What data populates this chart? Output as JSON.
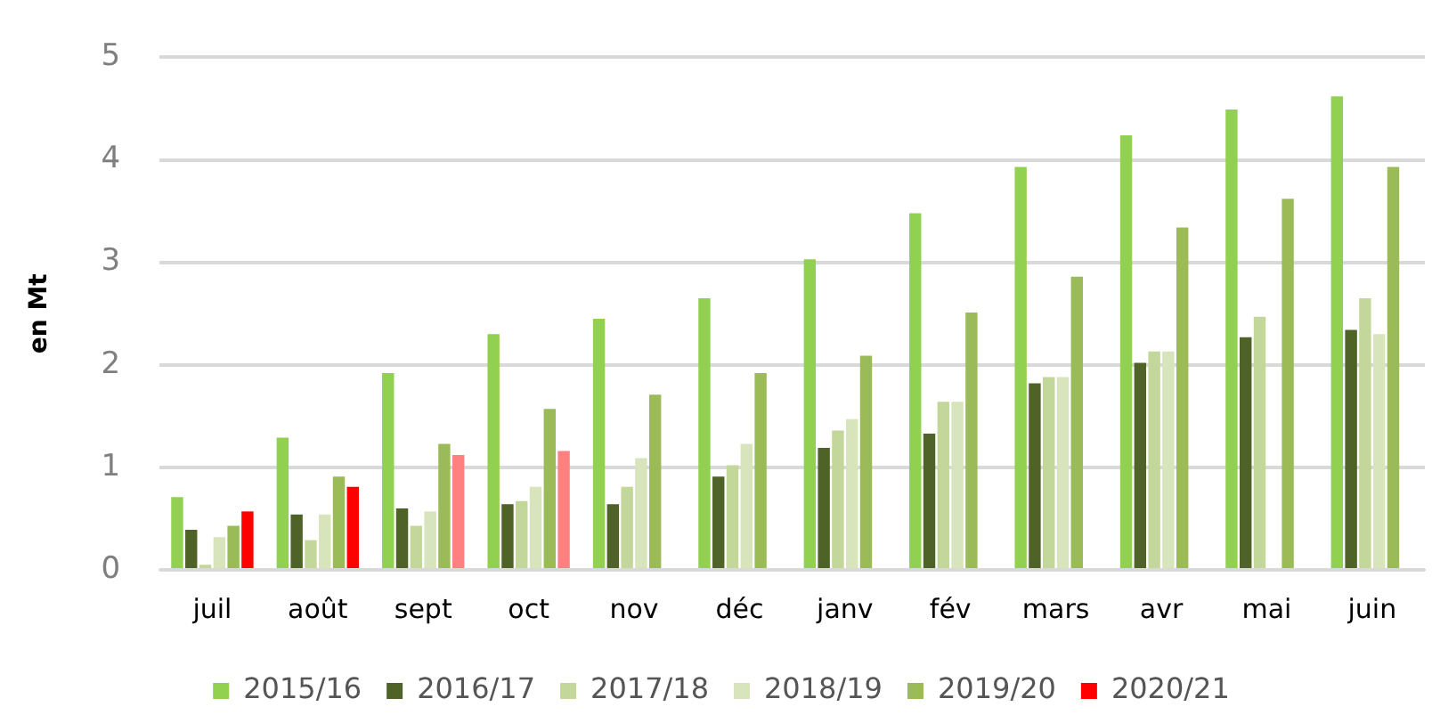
{
  "chart_data": {
    "type": "bar",
    "ylabel": "en Mt",
    "categories": [
      "juil",
      "août",
      "sept",
      "oct",
      "nov",
      "déc",
      "janv",
      "fév",
      "mars",
      "avr",
      "mai",
      "juin"
    ],
    "series": [
      {
        "name": "2015/16",
        "color": "#92d050",
        "values": [
          0.71,
          1.29,
          1.92,
          2.3,
          2.45,
          2.65,
          3.03,
          3.48,
          3.93,
          4.24,
          4.49,
          4.62
        ]
      },
      {
        "name": "2016/17",
        "color": "#4f6228",
        "values": [
          0.39,
          0.54,
          0.6,
          0.64,
          0.64,
          0.91,
          1.19,
          1.33,
          1.82,
          2.02,
          2.27,
          2.34
        ]
      },
      {
        "name": "2017/18",
        "color": "#c4d79b",
        "values": [
          0.05,
          0.29,
          0.43,
          0.67,
          0.81,
          1.02,
          1.36,
          1.64,
          1.88,
          2.13,
          2.47,
          2.65
        ]
      },
      {
        "name": "2018/19",
        "color": "#d8e4bc",
        "values": [
          0.32,
          0.54,
          0.57,
          0.81,
          1.09,
          1.23,
          1.47,
          1.64,
          1.88,
          2.13,
          null,
          2.3
        ]
      },
      {
        "name": "2019/20",
        "color": "#9bbb59",
        "values": [
          0.43,
          0.91,
          1.23,
          1.57,
          1.71,
          1.92,
          2.09,
          2.51,
          2.86,
          3.34,
          3.62,
          3.93
        ]
      },
      {
        "name": "2020/21",
        "color": "#ff0000",
        "colors": [
          "#ff0000",
          "#ff0000",
          "#ff8080",
          "#ff8080",
          null,
          null,
          null,
          null,
          null,
          null,
          null,
          null
        ],
        "values": [
          0.57,
          0.81,
          1.12,
          1.16,
          null,
          null,
          null,
          null,
          null,
          null,
          null,
          null
        ]
      }
    ],
    "ylim": [
      0,
      5
    ],
    "yticks": [
      0,
      1,
      2,
      3,
      4,
      5
    ],
    "grid": "y",
    "legend": "bottom"
  }
}
